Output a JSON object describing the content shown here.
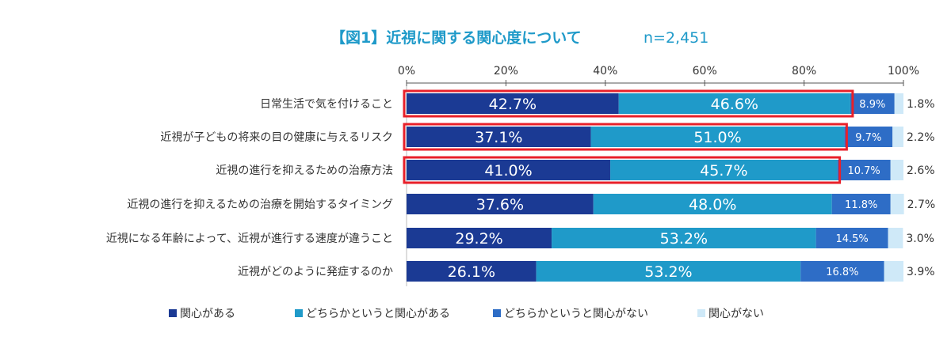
{
  "chart_data": {
    "type": "bar",
    "orientation": "horizontal",
    "stacked": true,
    "title": "【図1】近視に関する関心度について",
    "n_label": "n=2,451",
    "xlim": [
      0,
      100
    ],
    "tick_labels": [
      "0%",
      "20%",
      "40%",
      "60%",
      "80%",
      "100%"
    ],
    "tick_values": [
      0,
      20,
      40,
      60,
      80,
      100
    ],
    "grid": false,
    "legend_position": "bottom",
    "categories": [
      "日常生活で気を付けること",
      "近視が子どもの将来の目の健康に与えるリスク",
      "近視の進行を抑えるための治療方法",
      "近視の進行を抑えるための治療を開始するタイミング",
      "近視になる年齢によって、近視が進行する速度が違うこと",
      "近視がどのように発症するのか"
    ],
    "series": [
      {
        "name": "関心がある",
        "color": "#1b3a94",
        "values": [
          42.7,
          37.1,
          41.0,
          37.6,
          29.2,
          26.1
        ],
        "labels": [
          "42.7%",
          "37.1%",
          "41.0%",
          "37.6%",
          "29.2%",
          "26.1%"
        ]
      },
      {
        "name": "どちらかというと関心がある",
        "color": "#1f9ac9",
        "values": [
          46.6,
          51.0,
          45.7,
          48.0,
          53.2,
          53.2
        ],
        "labels": [
          "46.6%",
          "51.0%",
          "45.7%",
          "48.0%",
          "53.2%",
          "53.2%"
        ]
      },
      {
        "name": "どちらかというと関心がない",
        "color": "#2e6dc6",
        "values": [
          8.9,
          9.7,
          10.7,
          11.8,
          14.5,
          16.8
        ],
        "labels": [
          "8.9%",
          "9.7%",
          "10.7%",
          "11.8%",
          "14.5%",
          "16.8%"
        ]
      },
      {
        "name": "関心がない",
        "color": "#cfe9f8",
        "values": [
          1.8,
          2.2,
          2.6,
          2.7,
          3.0,
          3.9
        ],
        "labels": [
          "1.8%",
          "2.2%",
          "2.6%",
          "2.7%",
          "3.0%",
          "3.9%"
        ]
      }
    ],
    "highlighted_rows": [
      0,
      1,
      2
    ],
    "highlight_color": "#e8202a",
    "annotations": []
  }
}
